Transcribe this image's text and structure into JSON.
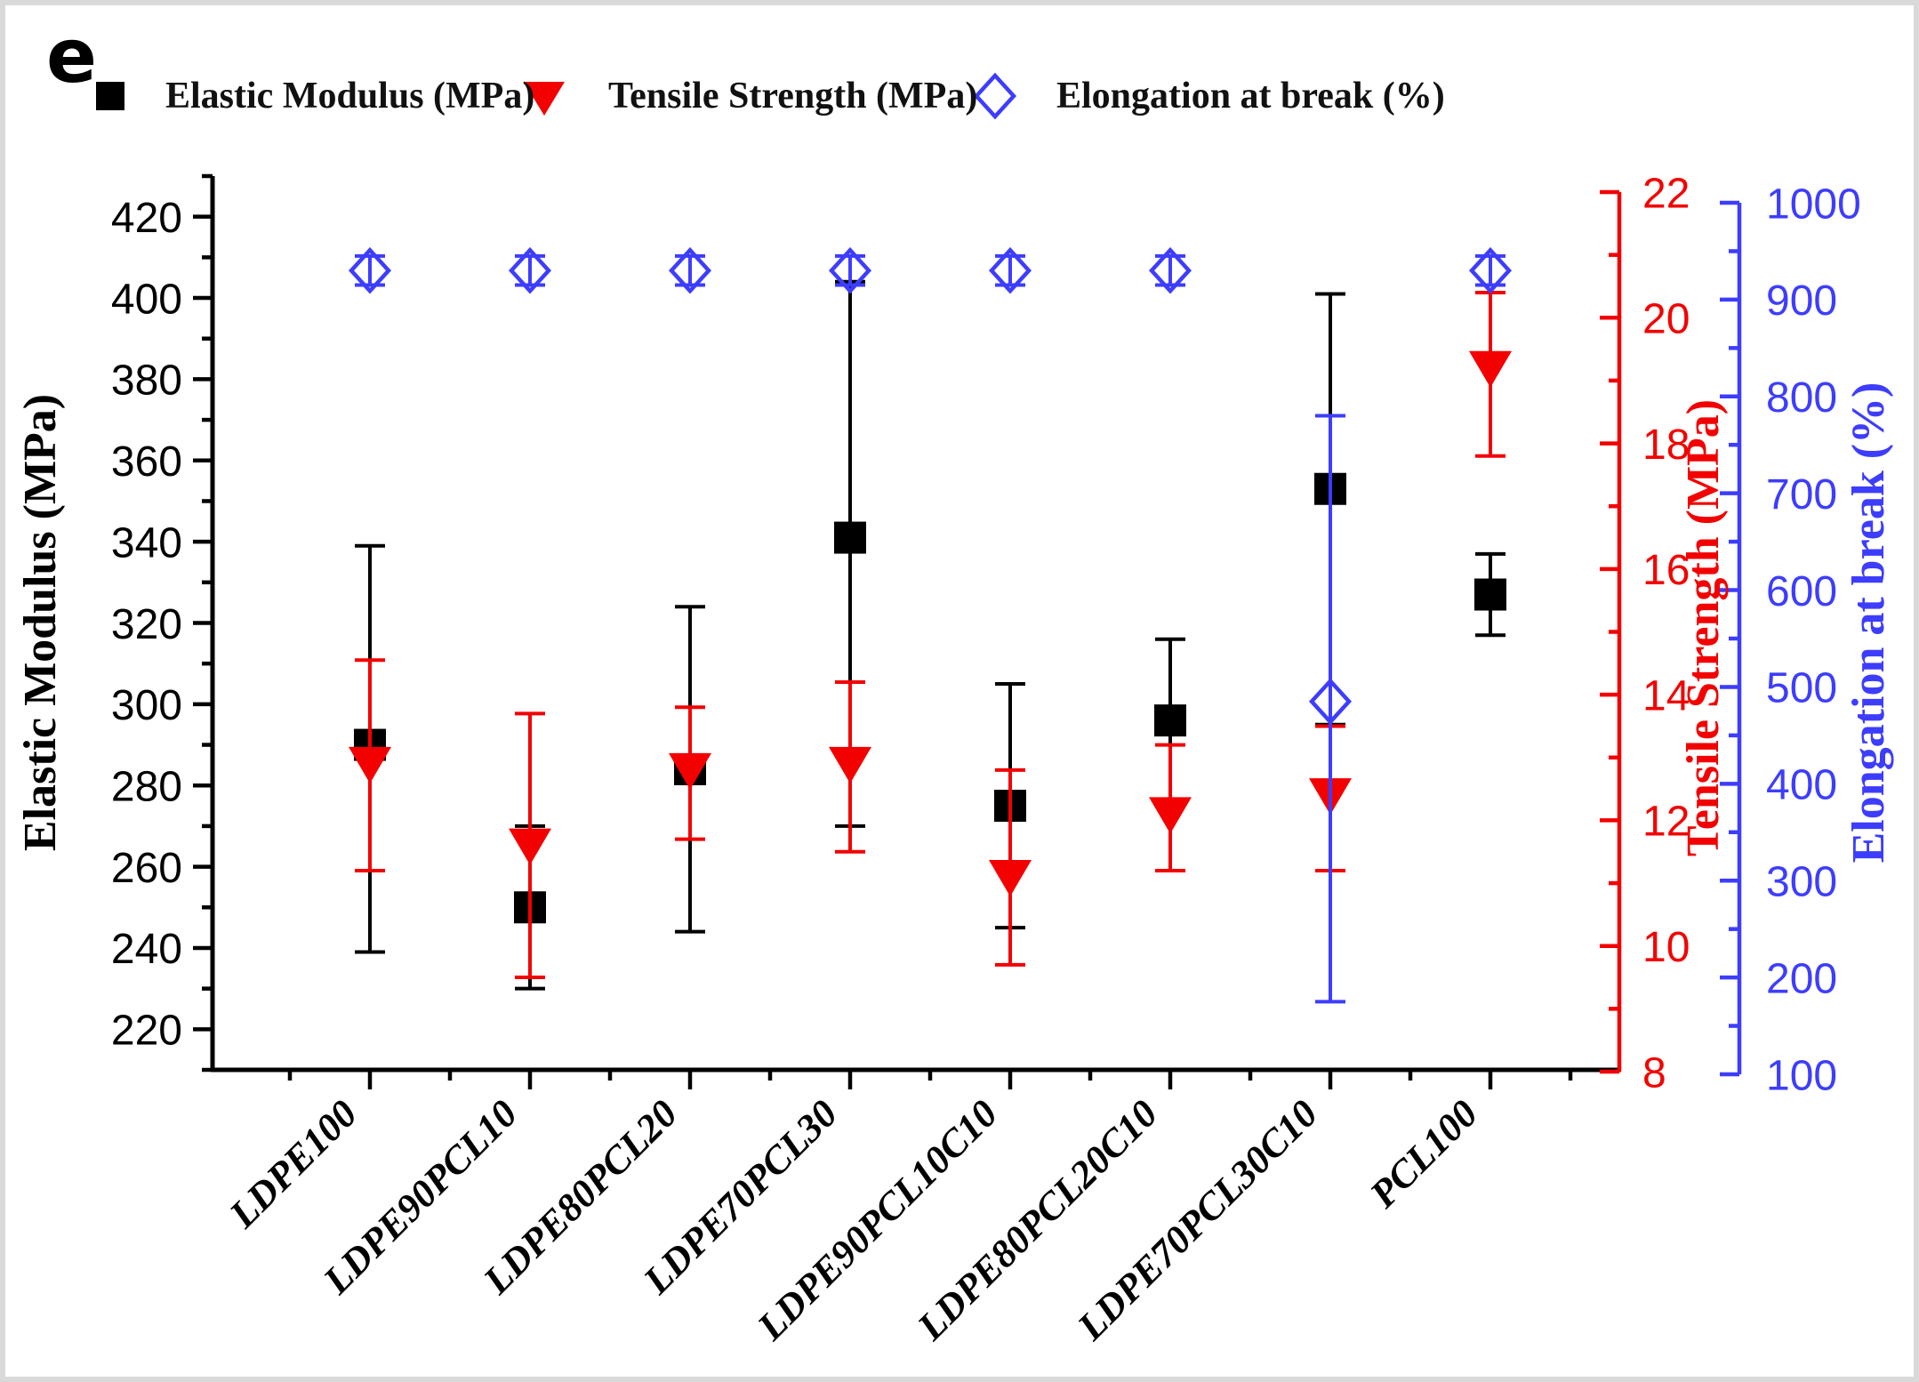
{
  "panel_label": "e",
  "colors": {
    "black": "#000000",
    "red": "#f30000",
    "blue": "#3d3dff",
    "frame_border": "#d9d9d9"
  },
  "chart_data": {
    "type": "scatter",
    "title": "",
    "categories": [
      "LDPE100",
      "LDPE90PCL10",
      "LDPE80PCL20",
      "LDPE70PCL30",
      "LDPE90PCL10C10",
      "LDPE80PCL20C10",
      "LDPE70PCL30C10",
      "PCL100"
    ],
    "series": [
      {
        "name": "Elastic Modulus (MPa)",
        "axis": "left",
        "marker": "square",
        "color": "#000000",
        "values": [
          290,
          250,
          284,
          341,
          275,
          296,
          353,
          327
        ],
        "err_plus": [
          49,
          20,
          40,
          63,
          30,
          20,
          48,
          10
        ],
        "err_minus": [
          51,
          20,
          40,
          71,
          30,
          20,
          58,
          10
        ]
      },
      {
        "name": "Tensile Strength (MPa)",
        "axis": "right1",
        "marker": "triangle-down",
        "color": "#f30000",
        "values": [
          12.9,
          11.6,
          12.8,
          12.9,
          11.1,
          12.1,
          12.4,
          19.2
        ],
        "err_plus": [
          1.65,
          2.1,
          1.0,
          1.3,
          1.7,
          1.1,
          1.1,
          1.2
        ],
        "err_minus": [
          1.7,
          2.1,
          1.1,
          1.4,
          1.4,
          0.9,
          1.2,
          1.4
        ]
      },
      {
        "name": "Elongation at break (%)",
        "axis": "right2",
        "marker": "diamond-open",
        "color": "#3d3dff",
        "values": [
          930,
          930,
          930,
          930,
          930,
          930,
          485,
          930
        ],
        "err_plus": [
          15,
          15,
          15,
          15,
          15,
          15,
          295,
          15
        ],
        "err_minus": [
          15,
          15,
          15,
          15,
          15,
          15,
          310,
          15
        ]
      }
    ],
    "axes": {
      "left": {
        "label": "Elastic Modulus (MPa)",
        "color": "#000000",
        "min": 210,
        "max": 430,
        "tick_start": 220,
        "tick_step": 20,
        "minor_step": 10
      },
      "right1": {
        "label": "Tensile Strength (MPa)",
        "color": "#f30000",
        "min": 8,
        "max": 22,
        "tick_start": 8,
        "tick_step": 2,
        "minor_step": 1
      },
      "right2": {
        "label": "Elongation at break (%)",
        "color": "#3d3dff",
        "min": 100,
        "max": 1000,
        "tick_start": 100,
        "tick_step": 100,
        "minor_step": 50
      }
    },
    "layout": {
      "legend_position": "top",
      "grid": false,
      "x_label_rotation": -45
    }
  }
}
